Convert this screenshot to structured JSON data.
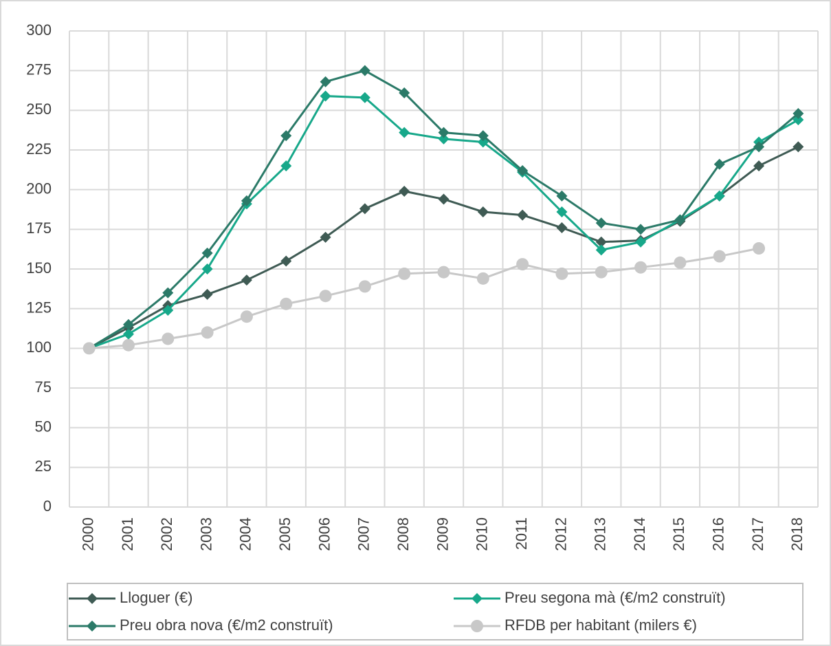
{
  "chart_data": {
    "type": "line",
    "categories": [
      "2000",
      "2001",
      "2002",
      "2003",
      "2004",
      "2005",
      "2006",
      "2007",
      "2008",
      "2009",
      "2010",
      "2011",
      "2012",
      "2013",
      "2014",
      "2015",
      "2016",
      "2017",
      "2018"
    ],
    "series": [
      {
        "name": "Lloguer (€)",
        "color": "#3f5b54",
        "marker": "diamond",
        "values": [
          100,
          113,
          127,
          134,
          143,
          155,
          170,
          188,
          199,
          194,
          186,
          184,
          176,
          167,
          168,
          180,
          196,
          215,
          227
        ]
      },
      {
        "name": "Preu segona mà (€/m2 construït)",
        "color": "#17a88a",
        "marker": "diamond",
        "values": [
          100,
          109,
          124,
          150,
          191,
          215,
          259,
          258,
          236,
          232,
          230,
          211,
          186,
          162,
          167,
          181,
          196,
          230,
          244
        ]
      },
      {
        "name": "Preu obra nova (€/m2 construït)",
        "color": "#2b7a68",
        "marker": "diamond",
        "values": [
          100,
          115,
          135,
          160,
          193,
          234,
          268,
          275,
          261,
          236,
          234,
          212,
          196,
          179,
          175,
          181,
          216,
          227,
          248
        ]
      },
      {
        "name": "RFDB per habitant (milers €)",
        "color": "#c8c8c8",
        "marker": "circle",
        "values": [
          100,
          102,
          106,
          110,
          120,
          128,
          133,
          139,
          147,
          148,
          144,
          153,
          147,
          148,
          151,
          154,
          158,
          163,
          null
        ]
      }
    ],
    "ylim": [
      0,
      300
    ],
    "yticks": [
      0,
      25,
      50,
      75,
      100,
      125,
      150,
      175,
      200,
      225,
      250,
      275,
      300
    ],
    "grid": true,
    "legend": "bottom"
  }
}
